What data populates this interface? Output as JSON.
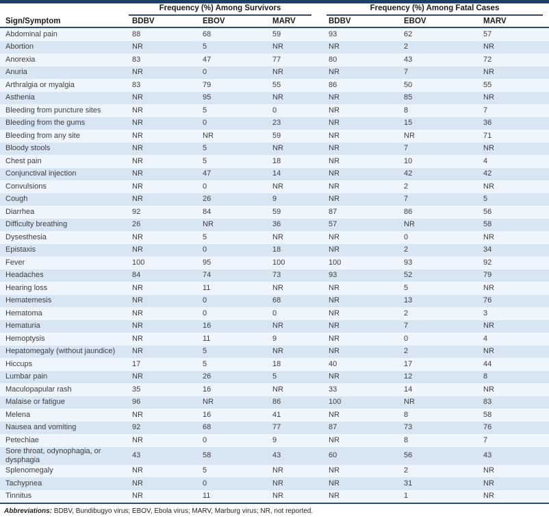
{
  "table": {
    "sign_symptom_header": "Sign/Symptom",
    "groups": [
      {
        "label": "Frequency (%) Among Survivors",
        "columns": [
          "BDBV",
          "EBOV",
          "MARV"
        ]
      },
      {
        "label": "Frequency (%) Among Fatal Cases",
        "columns": [
          "BDBV",
          "EBOV",
          "MARV"
        ]
      }
    ],
    "rows": [
      {
        "symptom": "Abdominal pain",
        "survivors": [
          "88",
          "68",
          "59"
        ],
        "fatal": [
          "93",
          "62",
          "57"
        ]
      },
      {
        "symptom": "Abortion",
        "survivors": [
          "NR",
          "5",
          "NR"
        ],
        "fatal": [
          "NR",
          "2",
          "NR"
        ]
      },
      {
        "symptom": "Anorexia",
        "survivors": [
          "83",
          "47",
          "77"
        ],
        "fatal": [
          "80",
          "43",
          "72"
        ]
      },
      {
        "symptom": "Anuria",
        "survivors": [
          "NR",
          "0",
          "NR"
        ],
        "fatal": [
          "NR",
          "7",
          "NR"
        ]
      },
      {
        "symptom": "Arthralgia or myalgia",
        "survivors": [
          "83",
          "79",
          "55"
        ],
        "fatal": [
          "86",
          "50",
          "55"
        ]
      },
      {
        "symptom": "Asthenia",
        "survivors": [
          "NR",
          "95",
          "NR"
        ],
        "fatal": [
          "NR",
          "85",
          "NR"
        ]
      },
      {
        "symptom": "Bleeding from puncture sites",
        "survivors": [
          "NR",
          "5",
          "0"
        ],
        "fatal": [
          "NR",
          "8",
          "7"
        ]
      },
      {
        "symptom": "Bleeding from the gums",
        "survivors": [
          "NR",
          "0",
          "23"
        ],
        "fatal": [
          "NR",
          "15",
          "36"
        ]
      },
      {
        "symptom": "Bleeding from any site",
        "survivors": [
          "NR",
          "NR",
          "59"
        ],
        "fatal": [
          "NR",
          "NR",
          "71"
        ]
      },
      {
        "symptom": "Bloody stools",
        "survivors": [
          "NR",
          "5",
          "NR"
        ],
        "fatal": [
          "NR",
          "7",
          "NR"
        ]
      },
      {
        "symptom": "Chest pain",
        "survivors": [
          "NR",
          "5",
          "18"
        ],
        "fatal": [
          "NR",
          "10",
          "4"
        ]
      },
      {
        "symptom": "Conjunctival injection",
        "survivors": [
          "NR",
          "47",
          "14"
        ],
        "fatal": [
          "NR",
          "42",
          "42"
        ]
      },
      {
        "symptom": "Convulsions",
        "survivors": [
          "NR",
          "0",
          "NR"
        ],
        "fatal": [
          "NR",
          "2",
          "NR"
        ]
      },
      {
        "symptom": "Cough",
        "survivors": [
          "NR",
          "26",
          "9"
        ],
        "fatal": [
          "NR",
          "7",
          "5"
        ]
      },
      {
        "symptom": "Diarrhea",
        "survivors": [
          "92",
          "84",
          "59"
        ],
        "fatal": [
          "87",
          "86",
          "56"
        ]
      },
      {
        "symptom": "Difficulty breathing",
        "survivors": [
          "26",
          "NR",
          "36"
        ],
        "fatal": [
          "57",
          "NR",
          "58"
        ]
      },
      {
        "symptom": "Dysesthesia",
        "survivors": [
          "NR",
          "5",
          "NR"
        ],
        "fatal": [
          "NR",
          "0",
          "NR"
        ]
      },
      {
        "symptom": "Epistaxis",
        "survivors": [
          "NR",
          "0",
          "18"
        ],
        "fatal": [
          "NR",
          "2",
          "34"
        ]
      },
      {
        "symptom": "Fever",
        "survivors": [
          "100",
          "95",
          "100"
        ],
        "fatal": [
          "100",
          "93",
          "92"
        ]
      },
      {
        "symptom": "Headaches",
        "survivors": [
          "84",
          "74",
          "73"
        ],
        "fatal": [
          "93",
          "52",
          "79"
        ]
      },
      {
        "symptom": "Hearing loss",
        "survivors": [
          "NR",
          "11",
          "NR"
        ],
        "fatal": [
          "NR",
          "5",
          "NR"
        ]
      },
      {
        "symptom": "Hematemesis",
        "survivors": [
          "NR",
          "0",
          "68"
        ],
        "fatal": [
          "NR",
          "13",
          "76"
        ]
      },
      {
        "symptom": "Hematoma",
        "survivors": [
          "NR",
          "0",
          "0"
        ],
        "fatal": [
          "NR",
          "2",
          "3"
        ]
      },
      {
        "symptom": "Hematuria",
        "survivors": [
          "NR",
          "16",
          "NR"
        ],
        "fatal": [
          "NR",
          "7",
          "NR"
        ]
      },
      {
        "symptom": "Hemoptysis",
        "survivors": [
          "NR",
          "11",
          "9"
        ],
        "fatal": [
          "NR",
          "0",
          "4"
        ]
      },
      {
        "symptom": "Hepatomegaly (without jaundice)",
        "survivors": [
          "NR",
          "5",
          "NR"
        ],
        "fatal": [
          "NR",
          "2",
          "NR"
        ]
      },
      {
        "symptom": "Hiccups",
        "survivors": [
          "17",
          "5",
          "18"
        ],
        "fatal": [
          "40",
          "17",
          "44"
        ]
      },
      {
        "symptom": "Lumbar pain",
        "survivors": [
          "NR",
          "26",
          "5"
        ],
        "fatal": [
          "NR",
          "12",
          "8"
        ]
      },
      {
        "symptom": "Maculopapular rash",
        "survivors": [
          "35",
          "16",
          "NR"
        ],
        "fatal": [
          "33",
          "14",
          "NR"
        ]
      },
      {
        "symptom": "Malaise or fatigue",
        "survivors": [
          "96",
          "NR",
          "86"
        ],
        "fatal": [
          "100",
          "NR",
          "83"
        ]
      },
      {
        "symptom": "Melena",
        "survivors": [
          "NR",
          "16",
          "41"
        ],
        "fatal": [
          "NR",
          "8",
          "58"
        ]
      },
      {
        "symptom": "Nausea and vomiting",
        "survivors": [
          "92",
          "68",
          "77"
        ],
        "fatal": [
          "87",
          "73",
          "76"
        ]
      },
      {
        "symptom": "Petechiae",
        "survivors": [
          "NR",
          "0",
          "9"
        ],
        "fatal": [
          "NR",
          "8",
          "7"
        ]
      },
      {
        "symptom": "Sore throat, odynophagia, or dysphagia",
        "survivors": [
          "43",
          "58",
          "43"
        ],
        "fatal": [
          "60",
          "56",
          "43"
        ]
      },
      {
        "symptom": "Splenomegaly",
        "survivors": [
          "NR",
          "5",
          "NR"
        ],
        "fatal": [
          "NR",
          "2",
          "NR"
        ]
      },
      {
        "symptom": "Tachypnea",
        "survivors": [
          "NR",
          "0",
          "NR"
        ],
        "fatal": [
          "NR",
          "31",
          "NR"
        ]
      },
      {
        "symptom": "Tinnitus",
        "survivors": [
          "NR",
          "11",
          "NR"
        ],
        "fatal": [
          "NR",
          "1",
          "NR"
        ]
      }
    ],
    "footnote_label": "Abbreviations:",
    "footnote_text": " BDBV, Bundibugyo virus; EBOV, Ebola virus; MARV, Marburg virus; NR, not reported."
  },
  "colors": {
    "navy_bar": "#1f4066",
    "rule": "#2b4a72",
    "row_light": "#eff5fc",
    "row_blue": "#d8e6f4"
  }
}
